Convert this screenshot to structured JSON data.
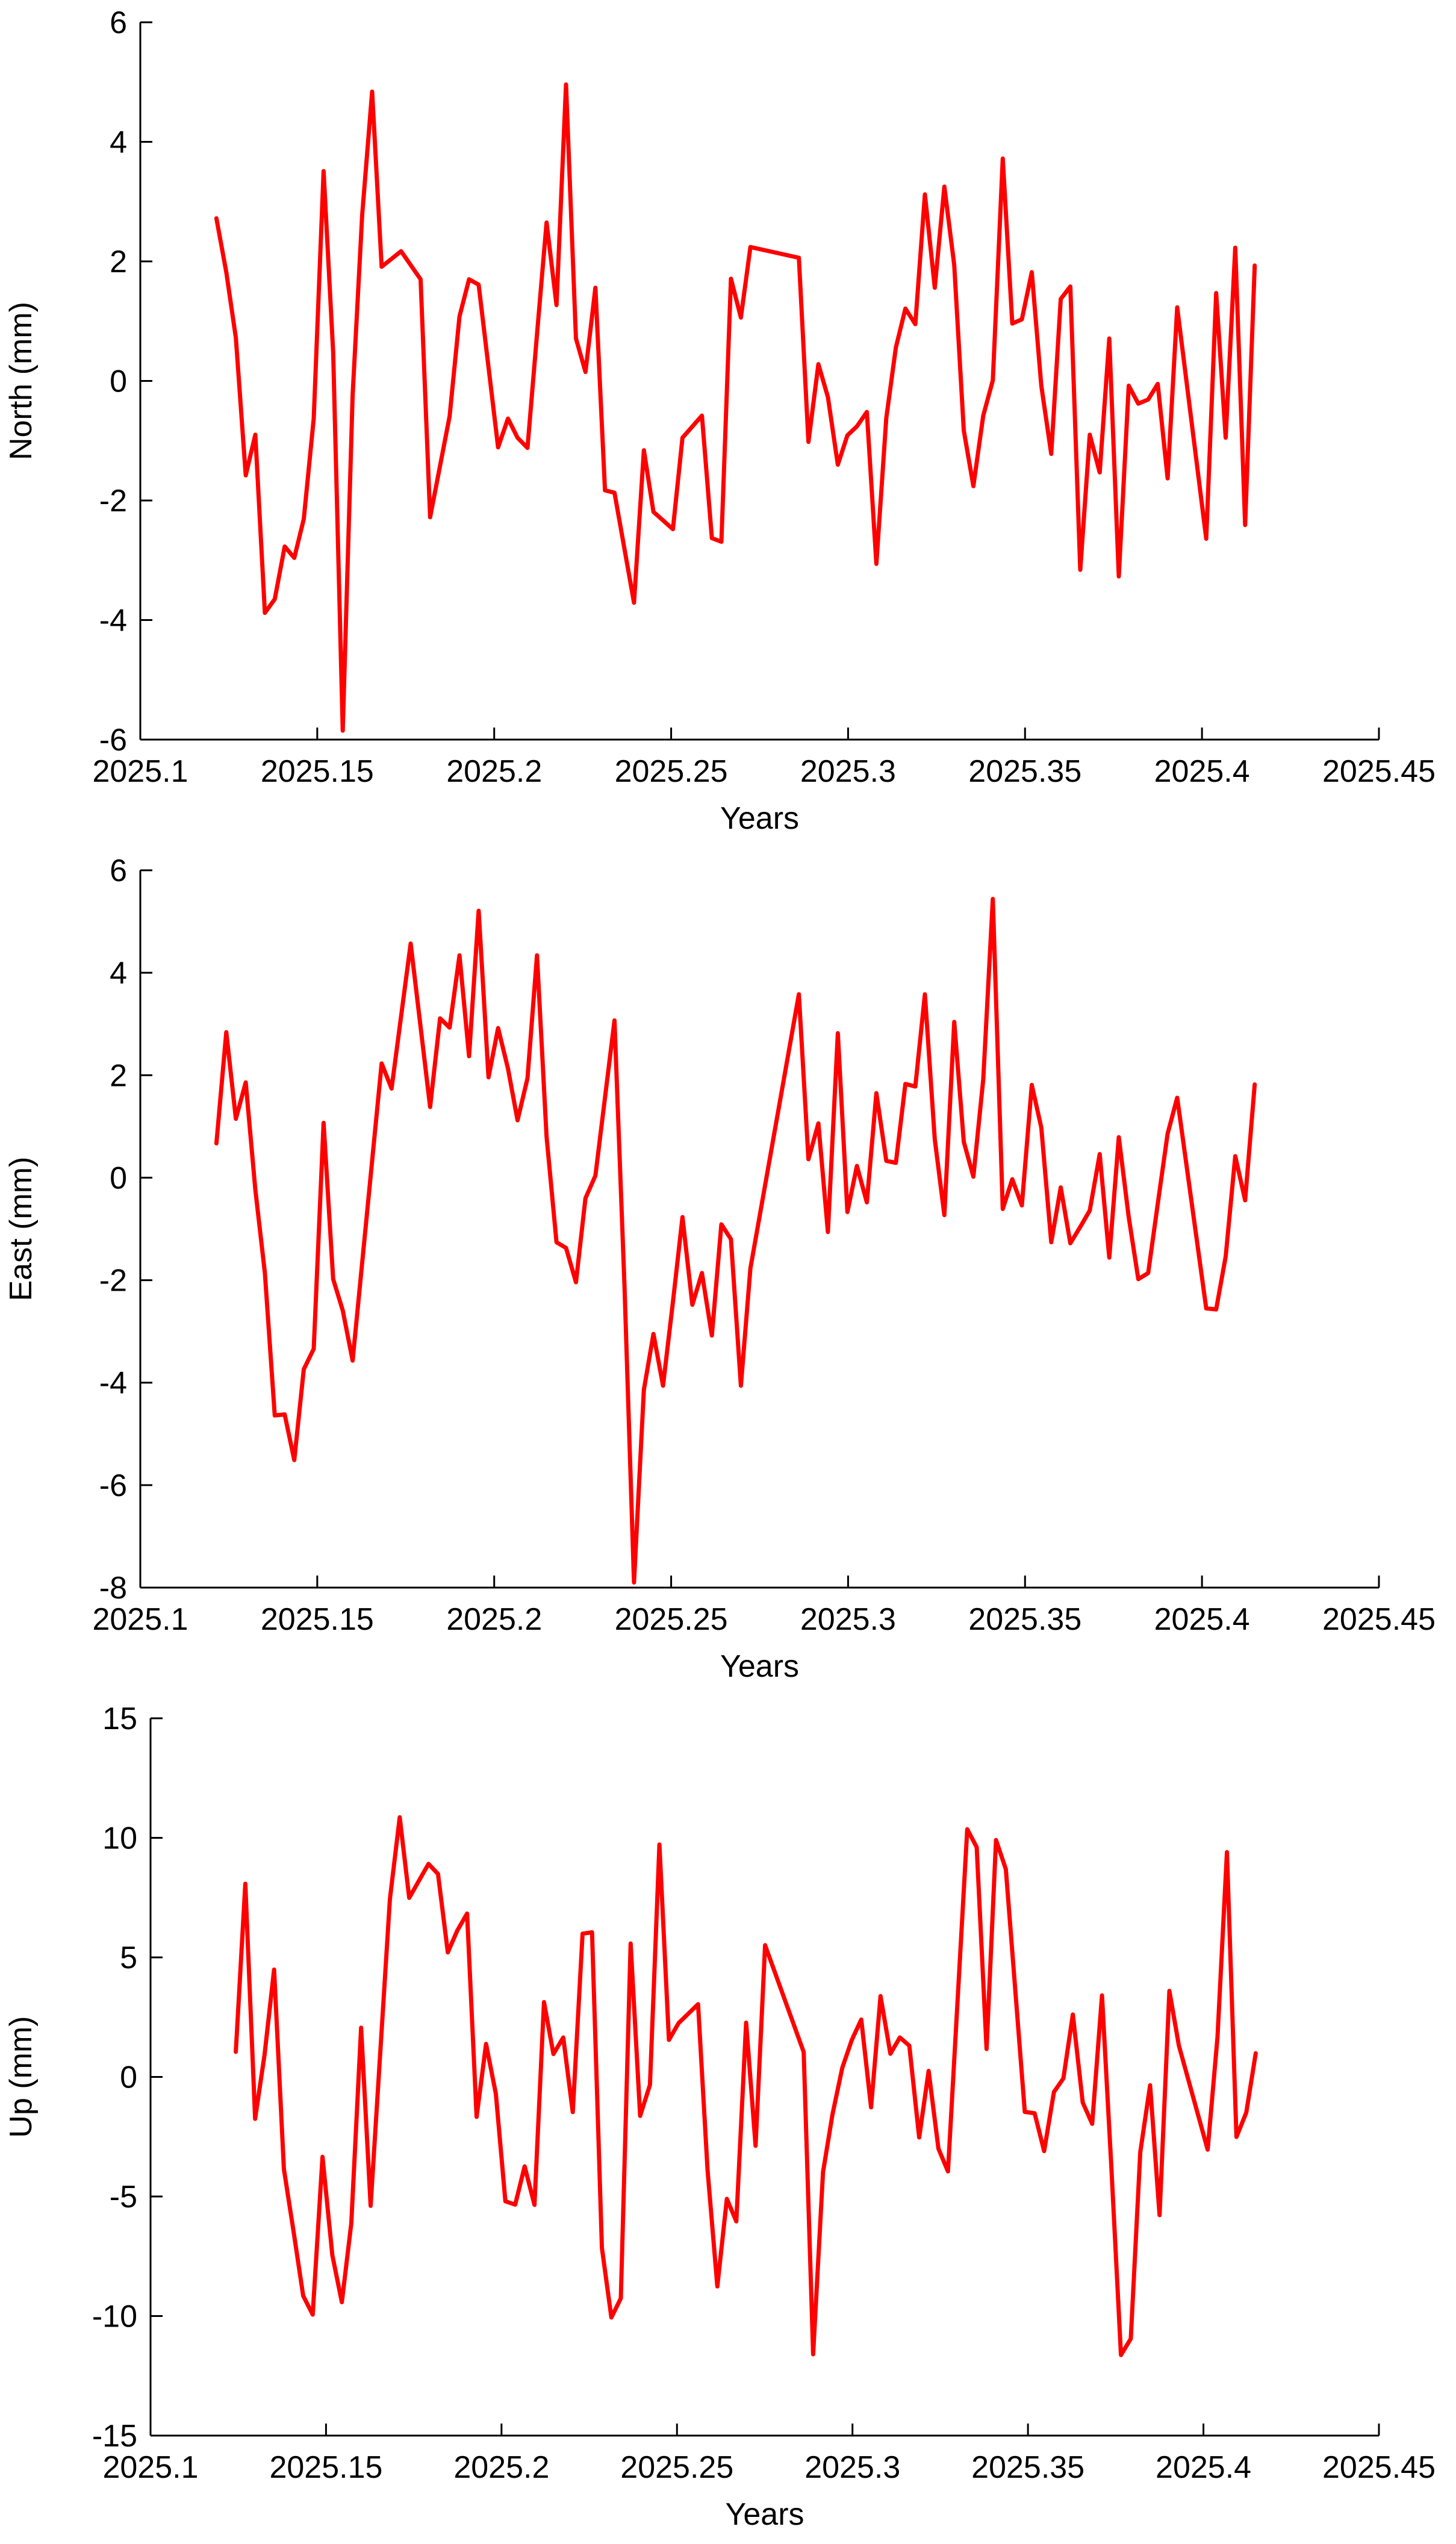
{
  "colors": {
    "series": "#ff0000",
    "axis": "#000000",
    "background": "#ffffff"
  },
  "chart_data": [
    {
      "type": "line",
      "xlabel": "Years",
      "ylabel": "North (mm)",
      "xlim": [
        2025.1,
        2025.45
      ],
      "ylim": [
        -6,
        6
      ],
      "xticks": [
        2025.1,
        2025.15,
        2025.2,
        2025.25,
        2025.3,
        2025.35,
        2025.4,
        2025.45
      ],
      "xtick_labels": [
        "2025.1",
        "2025.15",
        "2025.2",
        "2025.25",
        "2025.3",
        "2025.35",
        "2025.4",
        "2025.45"
      ],
      "yticks": [
        -6,
        -4,
        -2,
        0,
        2,
        4,
        6
      ],
      "ytick_labels": [
        "-6",
        "-4",
        "-2",
        "0",
        "2",
        "4",
        "6"
      ],
      "grid": false,
      "series": [
        {
          "color": "#ff0000",
          "x": [
            2025.1215,
            2025.1243,
            2025.127,
            2025.1298,
            2025.1325,
            2025.1352,
            2025.138,
            2025.1408,
            2025.1435,
            2025.1462,
            2025.149,
            2025.1518,
            2025.1545,
            2025.1572,
            2025.16,
            2025.1627,
            2025.1655,
            2025.1682,
            2025.1737,
            2025.1792,
            2025.1819,
            2025.1874,
            2025.1902,
            2025.1929,
            2025.1956,
            2025.2011,
            2025.2039,
            2025.2066,
            2025.2094,
            2025.2121,
            2025.2148,
            2025.2176,
            2025.2203,
            2025.2231,
            2025.2258,
            2025.2286,
            2025.2313,
            2025.234,
            2025.2395,
            2025.2423,
            2025.245,
            2025.2505,
            2025.2532,
            2025.2587,
            2025.2615,
            2025.2642,
            2025.2669,
            2025.2697,
            2025.2724,
            2025.2861,
            2025.2888,
            2025.2916,
            2025.2943,
            2025.2971,
            2025.2998,
            2025.3025,
            2025.3053,
            2025.308,
            2025.3108,
            2025.3135,
            2025.3162,
            2025.319,
            2025.3217,
            2025.3245,
            2025.3272,
            2025.33,
            2025.3327,
            2025.3354,
            2025.3382,
            2025.3409,
            2025.3437,
            2025.3464,
            2025.3491,
            2025.3519,
            2025.3546,
            2025.3574,
            2025.3601,
            2025.3628,
            2025.3656,
            2025.3683,
            2025.3711,
            2025.3738,
            2025.3765,
            2025.3793,
            2025.382,
            2025.3848,
            2025.3875,
            2025.3903,
            2025.393,
            2025.4012,
            2025.404,
            2025.4067,
            2025.4094,
            2025.4122,
            2025.4149
          ],
          "y": [
            2.72,
            1.82,
            0.72,
            -1.58,
            -0.9,
            -3.88,
            -3.65,
            -2.77,
            -2.96,
            -2.31,
            -0.63,
            3.51,
            0.48,
            -5.85,
            -0.24,
            2.78,
            4.84,
            1.91,
            2.17,
            1.7,
            -2.28,
            -0.59,
            1.08,
            1.7,
            1.61,
            -1.11,
            -0.63,
            -0.95,
            -1.12,
            0.78,
            2.65,
            1.27,
            4.96,
            0.71,
            0.15,
            1.56,
            -1.83,
            -1.87,
            -3.71,
            -1.16,
            -2.19,
            -2.48,
            -0.95,
            -0.58,
            -2.63,
            -2.69,
            1.71,
            1.06,
            2.24,
            2.06,
            -1.02,
            0.28,
            -0.27,
            -1.4,
            -0.91,
            -0.76,
            -0.52,
            -3.06,
            -0.62,
            0.56,
            1.21,
            0.95,
            3.12,
            1.56,
            3.25,
            1.94,
            -0.83,
            -1.76,
            -0.58,
            0.01,
            3.72,
            0.96,
            1.03,
            1.82,
            -0.08,
            -1.22,
            1.37,
            1.58,
            -3.16,
            -0.9,
            -1.53,
            0.71,
            -3.27,
            -0.08,
            -0.38,
            -0.31,
            -0.05,
            -1.63,
            1.23,
            -2.64,
            1.47,
            -0.95,
            2.23,
            -2.41,
            1.93
          ]
        }
      ]
    },
    {
      "type": "line",
      "xlabel": "Years",
      "ylabel": "East (mm)",
      "xlim": [
        2025.1,
        2025.45
      ],
      "ylim": [
        -8,
        6
      ],
      "xticks": [
        2025.1,
        2025.15,
        2025.2,
        2025.25,
        2025.3,
        2025.35,
        2025.4,
        2025.45
      ],
      "xtick_labels": [
        "2025.1",
        "2025.15",
        "2025.2",
        "2025.25",
        "2025.3",
        "2025.35",
        "2025.4",
        "2025.45"
      ],
      "yticks": [
        -8,
        -6,
        -4,
        -2,
        0,
        2,
        4,
        6
      ],
      "ytick_labels": [
        "-8",
        "-6",
        "-4",
        "-2",
        "0",
        "2",
        "4",
        "6"
      ],
      "grid": false,
      "series": [
        {
          "color": "#ff0000",
          "x": [
            2025.1215,
            2025.1243,
            2025.127,
            2025.1298,
            2025.1325,
            2025.1352,
            2025.138,
            2025.1408,
            2025.1435,
            2025.1462,
            2025.149,
            2025.1518,
            2025.1545,
            2025.1572,
            2025.16,
            2025.1682,
            2025.171,
            2025.1764,
            2025.1819,
            2025.1847,
            2025.1874,
            2025.1902,
            2025.1929,
            2025.1956,
            2025.1984,
            2025.2011,
            2025.2039,
            2025.2066,
            2025.2094,
            2025.2121,
            2025.2148,
            2025.2176,
            2025.2203,
            2025.2231,
            2025.2258,
            2025.2286,
            2025.234,
            2025.2368,
            2025.2395,
            2025.2423,
            2025.245,
            2025.2477,
            2025.2505,
            2025.2532,
            2025.256,
            2025.2587,
            2025.2615,
            2025.2642,
            2025.2669,
            2025.2697,
            2025.2724,
            2025.2861,
            2025.2888,
            2025.2916,
            2025.2943,
            2025.2971,
            2025.2998,
            2025.3025,
            2025.3053,
            2025.308,
            2025.3108,
            2025.3135,
            2025.3162,
            2025.319,
            2025.3217,
            2025.3245,
            2025.3272,
            2025.33,
            2025.3327,
            2025.3354,
            2025.3382,
            2025.3409,
            2025.3437,
            2025.3464,
            2025.3491,
            2025.3519,
            2025.3546,
            2025.3574,
            2025.3601,
            2025.3628,
            2025.3656,
            2025.3683,
            2025.3711,
            2025.3738,
            2025.3765,
            2025.3793,
            2025.382,
            2025.3848,
            2025.3875,
            2025.3903,
            2025.393,
            2025.4012,
            2025.404,
            2025.4067,
            2025.4094,
            2025.4122,
            2025.4149
          ],
          "y": [
            0.67,
            2.84,
            1.15,
            1.86,
            -0.23,
            -1.86,
            -4.64,
            -4.62,
            -5.51,
            -3.74,
            -3.34,
            1.07,
            -1.98,
            -2.59,
            -3.57,
            2.23,
            1.74,
            4.57,
            1.38,
            3.11,
            2.93,
            4.34,
            2.37,
            5.21,
            1.96,
            2.92,
            2.13,
            1.12,
            1.94,
            4.34,
            0.8,
            -1.26,
            -1.37,
            -2.04,
            -0.4,
            0.04,
            3.07,
            -2.08,
            -7.9,
            -4.14,
            -3.05,
            -4.06,
            -2.43,
            -0.77,
            -2.48,
            -1.86,
            -3.08,
            -0.91,
            -1.2,
            -4.06,
            -1.77,
            3.58,
            0.36,
            1.06,
            -1.06,
            2.82,
            -0.67,
            0.23,
            -0.48,
            1.65,
            0.33,
            0.29,
            1.83,
            1.78,
            3.58,
            0.75,
            -0.73,
            3.04,
            0.7,
            0.02,
            1.92,
            5.44,
            -0.61,
            -0.03,
            -0.54,
            1.81,
            0.98,
            -1.26,
            -0.19,
            -1.28,
            -0.96,
            -0.64,
            0.46,
            -1.56,
            0.79,
            -0.77,
            -1.98,
            -1.86,
            -0.51,
            0.86,
            1.56,
            -2.55,
            -2.57,
            -1.54,
            0.42,
            -0.44,
            1.82
          ]
        }
      ]
    },
    {
      "type": "line",
      "xlabel": "Years",
      "ylabel": "Up (mm)",
      "xlim": [
        2025.1,
        2025.45
      ],
      "ylim": [
        -15,
        15
      ],
      "xticks": [
        2025.1,
        2025.15,
        2025.2,
        2025.25,
        2025.3,
        2025.35,
        2025.4,
        2025.45
      ],
      "xtick_labels": [
        "2025.1",
        "2025.15",
        "2025.2",
        "2025.25",
        "2025.3",
        "2025.35",
        "2025.4",
        "2025.45"
      ],
      "yticks": [
        -15,
        -10,
        -5,
        0,
        5,
        10,
        15
      ],
      "ytick_labels": [
        "-15",
        "-10",
        "-5",
        "0",
        "5",
        "10",
        "15"
      ],
      "grid": false,
      "series": [
        {
          "color": "#ff0000",
          "x": [
            2025.1243,
            2025.127,
            2025.1298,
            2025.1325,
            2025.1352,
            2025.138,
            2025.1408,
            2025.1435,
            2025.1462,
            2025.149,
            2025.1518,
            2025.1545,
            2025.1572,
            2025.16,
            2025.1627,
            2025.1682,
            2025.171,
            2025.1737,
            2025.1792,
            2025.1819,
            2025.1847,
            2025.1874,
            2025.1902,
            2025.1929,
            2025.1956,
            2025.1984,
            2025.2011,
            2025.2039,
            2025.2066,
            2025.2094,
            2025.2121,
            2025.2148,
            2025.2176,
            2025.2203,
            2025.2231,
            2025.2258,
            2025.2286,
            2025.2313,
            2025.234,
            2025.2368,
            2025.2395,
            2025.2423,
            2025.245,
            2025.2477,
            2025.2505,
            2025.256,
            2025.2587,
            2025.2615,
            2025.2642,
            2025.2669,
            2025.2697,
            2025.2724,
            2025.2751,
            2025.2861,
            2025.2888,
            2025.2916,
            2025.2943,
            2025.2971,
            2025.2998,
            2025.3025,
            2025.3053,
            2025.308,
            2025.3108,
            2025.3135,
            2025.3162,
            2025.319,
            2025.3217,
            2025.3245,
            2025.3272,
            2025.3327,
            2025.3354,
            2025.3382,
            2025.3409,
            2025.3437,
            2025.3491,
            2025.3519,
            2025.3546,
            2025.3574,
            2025.3601,
            2025.3628,
            2025.3656,
            2025.3683,
            2025.3711,
            2025.3738,
            2025.3765,
            2025.3793,
            2025.382,
            2025.3848,
            2025.3875,
            2025.3903,
            2025.393,
            2025.4012,
            2025.404,
            2025.4067,
            2025.4094,
            2025.4122,
            2025.4149
          ],
          "y": [
            1.05,
            8.08,
            -1.75,
            0.94,
            4.49,
            -3.86,
            -6.51,
            -9.15,
            -9.94,
            -3.34,
            -7.45,
            -9.42,
            -6.12,
            2.06,
            -5.39,
            7.43,
            10.86,
            7.49,
            8.91,
            8.49,
            5.21,
            6.12,
            6.83,
            -1.67,
            1.38,
            -0.71,
            -5.2,
            -5.34,
            -3.74,
            -5.35,
            3.13,
            0.96,
            1.65,
            -1.47,
            5.99,
            6.05,
            -7.15,
            -10.06,
            -9.26,
            5.58,
            -1.63,
            -0.33,
            9.72,
            1.55,
            2.26,
            3.04,
            -3.88,
            -8.76,
            -5.1,
            -6.04,
            2.27,
            -2.88,
            5.51,
            1.04,
            -11.6,
            -3.98,
            -1.57,
            0.38,
            1.54,
            2.4,
            -1.27,
            3.38,
            0.97,
            1.65,
            1.31,
            -2.53,
            0.25,
            -3.0,
            -3.95,
            10.36,
            9.61,
            1.17,
            9.91,
            8.69,
            -1.46,
            -1.52,
            -3.1,
            -0.63,
            -0.06,
            2.61,
            -1.07,
            -1.96,
            3.41,
            -3.89,
            -11.63,
            -10.95,
            -3.14,
            -0.35,
            -5.78,
            3.6,
            1.31,
            -3.04,
            1.66,
            9.4,
            -2.51,
            -1.49,
            0.99
          ]
        }
      ]
    }
  ]
}
